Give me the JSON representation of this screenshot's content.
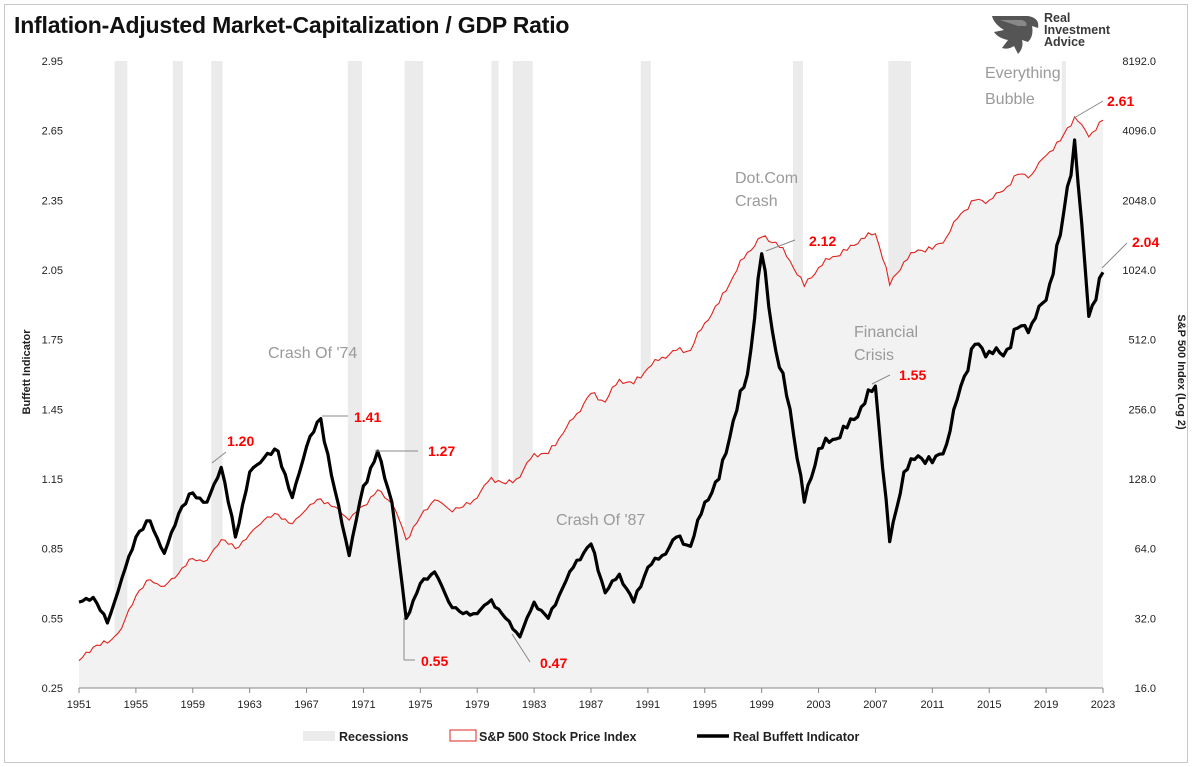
{
  "header": {
    "title": "Inflation-Adjusted Market-Capitalization / GDP Ratio",
    "logo_lines": [
      "Real",
      "Investment",
      "Advice"
    ]
  },
  "chart_data": {
    "type": "line",
    "title": "Inflation-Adjusted Market-Capitalization / GDP Ratio",
    "x_range": [
      1951,
      2023
    ],
    "x_ticks": [
      "1951",
      "1955",
      "1959",
      "1963",
      "1967",
      "1971",
      "1975",
      "1979",
      "1983",
      "1987",
      "1991",
      "1995",
      "1999",
      "2003",
      "2007",
      "2011",
      "2015",
      "2019",
      "2023"
    ],
    "left_axis": {
      "label": "Buffett Indicator",
      "range": [
        0.25,
        2.95
      ],
      "ticks": [
        "0.25",
        "0.55",
        "0.85",
        "1.15",
        "1.45",
        "1.75",
        "2.05",
        "2.35",
        "2.65",
        "2.95"
      ]
    },
    "right_axis": {
      "label": "S&P 500 Index (Log 2)",
      "scale": "log2",
      "range": [
        16,
        8192
      ],
      "ticks": [
        "16.0",
        "32.0",
        "64.0",
        "128.0",
        "256.0",
        "512.0",
        "1024.0",
        "2048.0",
        "4096.0",
        "8192.0"
      ]
    },
    "grid": false,
    "legend_position": "bottom",
    "legend": [
      "Recessions",
      "S&P 500 Stock Price Index",
      "Real Buffett Indicator"
    ],
    "colors": {
      "buffett": "#000000",
      "sp500": "#e0241e",
      "recession": "#ebebeb",
      "area_fill": "#f2f2f2",
      "highlight": "#ff0000",
      "annotation": "#9a9a9a"
    },
    "recessions": [
      [
        1953.5,
        1954.4
      ],
      [
        1957.6,
        1958.3
      ],
      [
        1960.3,
        1961.1
      ],
      [
        1969.9,
        1970.9
      ],
      [
        1973.9,
        1975.2
      ],
      [
        1980.0,
        1980.5
      ],
      [
        1981.5,
        1982.9
      ],
      [
        1990.5,
        1991.2
      ],
      [
        2001.2,
        2001.9
      ],
      [
        2007.9,
        2009.5
      ],
      [
        2020.1,
        2020.4
      ]
    ],
    "series": [
      {
        "name": "S&P 500 Stock Price Index",
        "axis": "right",
        "points": [
          [
            1951,
            21
          ],
          [
            1952,
            24
          ],
          [
            1953,
            25
          ],
          [
            1954,
            29
          ],
          [
            1955,
            40
          ],
          [
            1956,
            47
          ],
          [
            1957,
            44
          ],
          [
            1958,
            50
          ],
          [
            1959,
            58
          ],
          [
            1960,
            57
          ],
          [
            1961,
            70
          ],
          [
            1962,
            64
          ],
          [
            1963,
            74
          ],
          [
            1964,
            85
          ],
          [
            1965,
            90
          ],
          [
            1966,
            82
          ],
          [
            1967,
            95
          ],
          [
            1968,
            105
          ],
          [
            1969,
            97
          ],
          [
            1970,
            85
          ],
          [
            1971,
            98
          ],
          [
            1972,
            115
          ],
          [
            1973,
            100
          ],
          [
            1974,
            70
          ],
          [
            1975,
            88
          ],
          [
            1976,
            104
          ],
          [
            1977,
            95
          ],
          [
            1978,
            97
          ],
          [
            1979,
            106
          ],
          [
            1980,
            130
          ],
          [
            1981,
            122
          ],
          [
            1982,
            130
          ],
          [
            1983,
            165
          ],
          [
            1984,
            165
          ],
          [
            1985,
            200
          ],
          [
            1986,
            245
          ],
          [
            1987,
            300
          ],
          [
            1988,
            275
          ],
          [
            1989,
            345
          ],
          [
            1990,
            330
          ],
          [
            1991,
            385
          ],
          [
            1992,
            430
          ],
          [
            1993,
            460
          ],
          [
            1994,
            460
          ],
          [
            1995,
            605
          ],
          [
            1996,
            735
          ],
          [
            1997,
            960
          ],
          [
            1998,
            1220
          ],
          [
            1999,
            1420
          ],
          [
            2000,
            1350
          ],
          [
            2001,
            1120
          ],
          [
            2002,
            870
          ],
          [
            2003,
            1050
          ],
          [
            2004,
            1170
          ],
          [
            2005,
            1245
          ],
          [
            2006,
            1400
          ],
          [
            2007,
            1470
          ],
          [
            2008,
            880
          ],
          [
            2009,
            1110
          ],
          [
            2010,
            1250
          ],
          [
            2011,
            1260
          ],
          [
            2012,
            1420
          ],
          [
            2013,
            1790
          ],
          [
            2014,
            2050
          ],
          [
            2015,
            2050
          ],
          [
            2016,
            2250
          ],
          [
            2017,
            2650
          ],
          [
            2018,
            2650
          ],
          [
            2019,
            3200
          ],
          [
            2020,
            3700
          ],
          [
            2021,
            4700
          ],
          [
            2022,
            3850
          ],
          [
            2023,
            4550
          ]
        ]
      },
      {
        "name": "Real Buffett Indicator",
        "axis": "left",
        "points": [
          [
            1951,
            0.62
          ],
          [
            1952,
            0.64
          ],
          [
            1953,
            0.53
          ],
          [
            1954,
            0.72
          ],
          [
            1955,
            0.9
          ],
          [
            1956,
            0.97
          ],
          [
            1957,
            0.83
          ],
          [
            1958,
            1.0
          ],
          [
            1959,
            1.09
          ],
          [
            1960,
            1.05
          ],
          [
            1961,
            1.2
          ],
          [
            1962,
            0.9
          ],
          [
            1963,
            1.18
          ],
          [
            1964,
            1.24
          ],
          [
            1965,
            1.27
          ],
          [
            1966,
            1.07
          ],
          [
            1967,
            1.29
          ],
          [
            1968,
            1.41
          ],
          [
            1969,
            1.1
          ],
          [
            1970,
            0.82
          ],
          [
            1971,
            1.12
          ],
          [
            1972,
            1.27
          ],
          [
            1973,
            1.05
          ],
          [
            1974,
            0.55
          ],
          [
            1975,
            0.7
          ],
          [
            1976,
            0.75
          ],
          [
            1977,
            0.62
          ],
          [
            1978,
            0.57
          ],
          [
            1979,
            0.57
          ],
          [
            1980,
            0.63
          ],
          [
            1981,
            0.55
          ],
          [
            1982,
            0.47
          ],
          [
            1983,
            0.62
          ],
          [
            1984,
            0.55
          ],
          [
            1985,
            0.68
          ],
          [
            1986,
            0.8
          ],
          [
            1987,
            0.87
          ],
          [
            1988,
            0.66
          ],
          [
            1989,
            0.74
          ],
          [
            1990,
            0.62
          ],
          [
            1991,
            0.77
          ],
          [
            1992,
            0.82
          ],
          [
            1993,
            0.9
          ],
          [
            1994,
            0.86
          ],
          [
            1995,
            1.05
          ],
          [
            1996,
            1.15
          ],
          [
            1997,
            1.4
          ],
          [
            1998,
            1.6
          ],
          [
            1999,
            2.12
          ],
          [
            2000,
            1.7
          ],
          [
            2001,
            1.45
          ],
          [
            2002,
            1.05
          ],
          [
            2003,
            1.28
          ],
          [
            2004,
            1.32
          ],
          [
            2005,
            1.37
          ],
          [
            2006,
            1.46
          ],
          [
            2007,
            1.55
          ],
          [
            2008,
            0.88
          ],
          [
            2009,
            1.18
          ],
          [
            2010,
            1.25
          ],
          [
            2011,
            1.22
          ],
          [
            2012,
            1.3
          ],
          [
            2013,
            1.55
          ],
          [
            2014,
            1.73
          ],
          [
            2015,
            1.7
          ],
          [
            2016,
            1.68
          ],
          [
            2017,
            1.8
          ],
          [
            2018,
            1.82
          ],
          [
            2019,
            1.92
          ],
          [
            2020,
            2.2
          ],
          [
            2021,
            2.61
          ],
          [
            2022,
            1.85
          ],
          [
            2023,
            2.04
          ]
        ]
      }
    ],
    "annotations": {
      "events": [
        "Crash Of '74",
        "Dot.Com Crash",
        "Financial Crisis",
        "Everything Bubble",
        "Crash Of '87"
      ],
      "values": [
        "1.20",
        "1.41",
        "1.27",
        "0.55",
        "0.47",
        "2.12",
        "1.55",
        "2.61",
        "2.04"
      ]
    }
  }
}
